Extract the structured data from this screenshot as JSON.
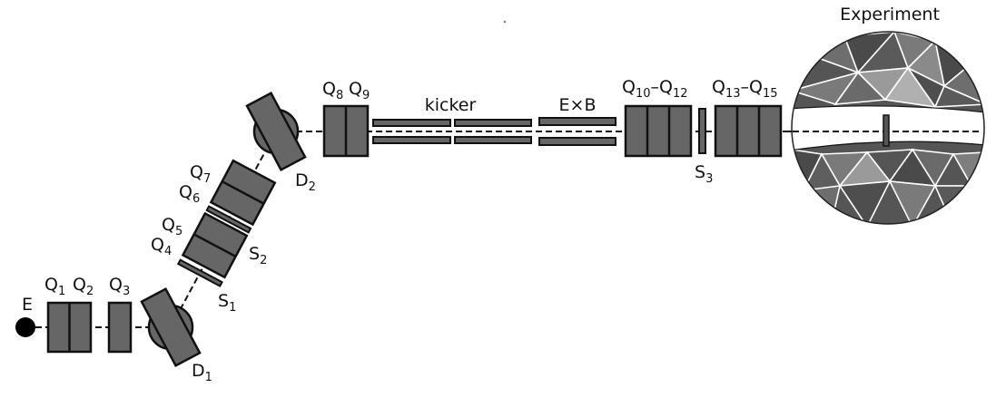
{
  "labels": {
    "experiment": "Experiment",
    "kicker": "kicker",
    "exb": "E×B",
    "e": "E",
    "q1": {
      "base": "Q",
      "sub": "1"
    },
    "q2": {
      "base": "Q",
      "sub": "2"
    },
    "q3": {
      "base": "Q",
      "sub": "3"
    },
    "q4": {
      "base": "Q",
      "sub": "4"
    },
    "q5": {
      "base": "Q",
      "sub": "5"
    },
    "q6": {
      "base": "Q",
      "sub": "6"
    },
    "q7": {
      "base": "Q",
      "sub": "7"
    },
    "q8": {
      "base": "Q",
      "sub": "8"
    },
    "q9": {
      "base": "Q",
      "sub": "9"
    },
    "q10_12": {
      "base": "Q",
      "sub": "10",
      "dash": "–",
      "base2": "Q",
      "sub2": "12"
    },
    "q13_15": {
      "base": "Q",
      "sub": "13",
      "dash": "–",
      "base2": "Q",
      "sub2": "15"
    },
    "s1": {
      "base": "S",
      "sub": "1"
    },
    "s2": {
      "base": "S",
      "sub": "2"
    },
    "s3": {
      "base": "S",
      "sub": "3"
    },
    "d1": {
      "base": "D",
      "sub": "1"
    },
    "d2": {
      "base": "D",
      "sub": "2"
    }
  },
  "colors": {
    "element_fill": "#666666",
    "stroke": "#111111",
    "source_fill": "#000000",
    "sphere_dark": "#4a4a4a",
    "sphere_mid": "#6e6e6e",
    "sphere_light": "#9a9a9a"
  }
}
